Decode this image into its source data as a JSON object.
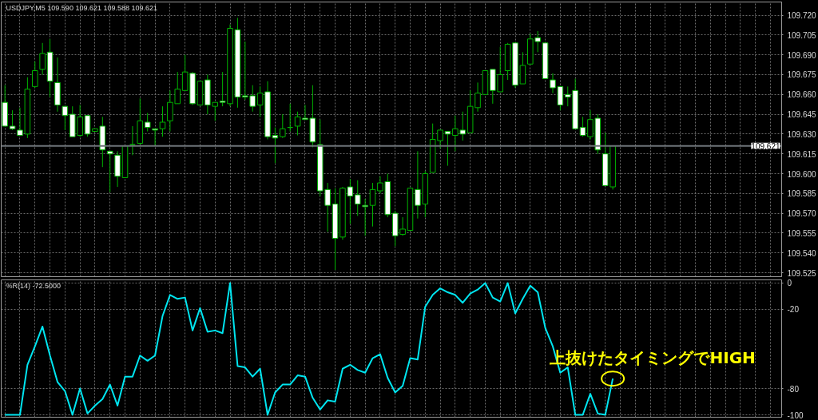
{
  "chart_data": [
    {
      "type": "candlestick",
      "title": "USDJPY,M5  109.590 109.621 109.588 109.621",
      "color": "#00b400",
      "categories": [
        null,
        null,
        null,
        null,
        null,
        null,
        null,
        null,
        null,
        null,
        null,
        null,
        null,
        null,
        null,
        null,
        null,
        null,
        null,
        null,
        null,
        null,
        null,
        null,
        null,
        null,
        null,
        null,
        null,
        null,
        null,
        null,
        null,
        null,
        null,
        null,
        null,
        null,
        null,
        null,
        null,
        null,
        null,
        null,
        null,
        null,
        null,
        null,
        null,
        null,
        null,
        null,
        null,
        null,
        null,
        null,
        null,
        null,
        null,
        null,
        null,
        null,
        null,
        null,
        null,
        null,
        null,
        null,
        null,
        null,
        null,
        null,
        null,
        null,
        null,
        null,
        null,
        null,
        null,
        null,
        null,
        null,
        null,
        null,
        null,
        null,
        null,
        null,
        null,
        null,
        null,
        null,
        null,
        null,
        null,
        null,
        null,
        null,
        null,
        null,
        null,
        null,
        null,
        null
      ],
      "ohlc": [
        [
          109.654,
          109.667,
          109.636,
          109.636
        ],
        [
          109.636,
          109.648,
          109.633,
          109.634
        ],
        [
          109.633,
          109.65,
          109.629,
          109.629
        ],
        [
          109.63,
          109.673,
          109.627,
          109.664
        ],
        [
          109.666,
          109.685,
          109.665,
          109.678
        ],
        [
          109.679,
          109.699,
          109.675,
          109.691
        ],
        [
          109.692,
          109.702,
          109.658,
          109.67
        ],
        [
          109.669,
          109.688,
          109.647,
          109.652
        ],
        [
          109.651,
          109.651,
          109.633,
          109.644
        ],
        [
          109.645,
          109.651,
          109.628,
          109.628
        ],
        [
          109.629,
          109.652,
          109.628,
          109.643
        ],
        [
          109.644,
          109.644,
          109.628,
          109.63
        ],
        [
          109.632,
          109.634,
          109.632,
          109.634
        ],
        [
          109.636,
          109.643,
          109.605,
          109.618
        ],
        [
          109.617,
          109.617,
          109.586,
          109.615
        ],
        [
          109.614,
          109.617,
          109.59,
          109.598
        ],
        [
          109.597,
          109.621,
          109.597,
          109.621
        ],
        [
          109.622,
          109.636,
          109.614,
          109.622
        ],
        [
          109.623,
          109.657,
          109.622,
          109.64
        ],
        [
          109.639,
          109.646,
          109.632,
          109.635
        ],
        [
          109.634,
          109.634,
          109.621,
          109.633
        ],
        [
          109.634,
          109.651,
          109.628,
          109.639
        ],
        [
          109.64,
          109.663,
          109.632,
          109.654
        ],
        [
          109.653,
          109.677,
          109.653,
          109.664
        ],
        [
          109.663,
          109.69,
          109.663,
          109.677
        ],
        [
          109.676,
          109.677,
          109.652,
          109.653
        ],
        [
          109.652,
          109.67,
          109.652,
          109.67
        ],
        [
          109.671,
          109.675,
          109.645,
          109.652
        ],
        [
          109.651,
          109.654,
          109.64,
          109.654
        ],
        [
          109.655,
          109.677,
          109.651,
          109.654
        ],
        [
          109.653,
          109.713,
          109.651,
          109.71
        ],
        [
          109.709,
          109.718,
          109.65,
          109.658
        ],
        [
          109.659,
          109.7,
          109.656,
          109.658
        ],
        [
          109.659,
          109.667,
          109.647,
          109.651
        ],
        [
          109.652,
          109.666,
          109.643,
          109.661
        ],
        [
          109.662,
          109.67,
          109.626,
          109.628
        ],
        [
          109.629,
          109.635,
          109.608,
          109.627
        ],
        [
          109.628,
          109.645,
          109.627,
          109.634
        ],
        [
          109.635,
          109.653,
          109.632,
          109.635
        ],
        [
          109.636,
          109.647,
          109.629,
          109.643
        ],
        [
          109.642,
          109.652,
          109.641,
          109.641
        ],
        [
          109.642,
          109.667,
          109.62,
          109.624
        ],
        [
          109.622,
          109.641,
          109.583,
          109.587
        ],
        [
          109.588,
          109.593,
          109.556,
          109.576
        ],
        [
          109.577,
          109.589,
          109.527,
          109.551
        ],
        [
          109.552,
          109.59,
          109.55,
          109.589
        ],
        [
          109.59,
          109.596,
          109.562,
          109.583
        ],
        [
          109.584,
          109.595,
          109.568,
          109.577
        ],
        [
          109.576,
          109.581,
          109.553,
          109.575
        ],
        [
          109.576,
          109.593,
          109.56,
          109.588
        ],
        [
          109.587,
          109.598,
          109.585,
          109.593
        ],
        [
          109.594,
          109.6,
          109.567,
          109.569
        ],
        [
          109.57,
          109.572,
          109.545,
          109.553
        ],
        [
          109.554,
          109.567,
          109.553,
          109.558
        ],
        [
          109.557,
          109.589,
          109.557,
          109.589
        ],
        [
          109.588,
          109.617,
          109.566,
          109.576
        ],
        [
          109.577,
          109.602,
          109.567,
          109.6
        ],
        [
          109.601,
          109.638,
          109.601,
          109.626
        ],
        [
          109.625,
          109.633,
          109.619,
          109.633
        ],
        [
          109.632,
          109.632,
          109.606,
          109.63
        ],
        [
          109.629,
          109.644,
          109.617,
          109.634
        ],
        [
          109.633,
          109.647,
          109.625,
          109.63
        ],
        [
          109.631,
          109.663,
          109.631,
          109.651
        ],
        [
          109.65,
          109.669,
          109.647,
          109.661
        ],
        [
          109.66,
          109.678,
          109.66,
          109.678
        ],
        [
          109.679,
          109.679,
          109.653,
          109.663
        ],
        [
          109.662,
          109.696,
          109.662,
          109.675
        ],
        [
          109.678,
          109.699,
          109.671,
          109.698
        ],
        [
          109.699,
          109.699,
          109.665,
          109.667
        ],
        [
          109.668,
          109.692,
          109.668,
          109.682
        ],
        [
          109.683,
          109.706,
          109.683,
          109.702
        ],
        [
          109.703,
          109.708,
          109.692,
          109.7
        ],
        [
          109.699,
          109.699,
          109.672,
          109.672
        ],
        [
          109.671,
          109.676,
          109.661,
          109.665
        ],
        [
          109.666,
          109.666,
          109.648,
          109.652
        ],
        [
          109.66,
          109.666,
          109.651,
          109.658
        ],
        [
          109.663,
          109.672,
          109.634,
          109.634
        ],
        [
          109.635,
          109.643,
          109.628,
          109.629
        ],
        [
          109.628,
          109.648,
          109.626,
          109.641
        ],
        [
          109.642,
          109.645,
          109.615,
          109.618
        ],
        [
          109.615,
          109.631,
          109.591,
          109.591
        ],
        [
          109.59,
          109.621,
          109.588,
          109.621
        ],
        null,
        null,
        null,
        null,
        null,
        null,
        null,
        null,
        null,
        null,
        null,
        null,
        null,
        null,
        null,
        null,
        null,
        null,
        null,
        null,
        null,
        null
      ],
      "ylim": [
        109.522,
        109.73
      ],
      "yticks": [
        {
          "value": 109.525,
          "label": "109.525"
        },
        {
          "value": 109.54,
          "label": "109.540"
        },
        {
          "value": 109.555,
          "label": "109.555"
        },
        {
          "value": 109.57,
          "label": "109.570"
        },
        {
          "value": 109.585,
          "label": "109.585"
        },
        {
          "value": 109.6,
          "label": "109.600"
        },
        {
          "value": 109.615,
          "label": "109.615"
        },
        {
          "value": 109.63,
          "label": "109.630"
        },
        {
          "value": 109.645,
          "label": "109.645"
        },
        {
          "value": 109.66,
          "label": "109.660"
        },
        {
          "value": 109.675,
          "label": "109.675"
        },
        {
          "value": 109.69,
          "label": "109.690"
        },
        {
          "value": 109.705,
          "label": "109.705"
        },
        {
          "value": 109.72,
          "label": "109.720"
        }
      ],
      "ref_lines": [
        {
          "axis": "y",
          "value": 109.621,
          "label": "109.621",
          "color": "#6e7378"
        }
      ],
      "grid": true,
      "tick_labels": "y"
    },
    {
      "type": "line",
      "title": "%R(14) -72.5000",
      "categories": [
        null,
        null,
        null,
        null,
        null,
        null,
        null,
        null,
        null,
        null,
        null,
        null,
        null,
        null,
        null,
        null,
        null,
        null,
        null,
        null,
        null,
        null,
        null,
        null,
        null,
        null,
        null,
        null,
        null,
        null,
        null,
        null,
        null,
        null,
        null,
        null,
        null,
        null,
        null,
        null,
        null,
        null,
        null,
        null,
        null,
        null,
        null,
        null,
        null,
        null,
        null,
        null,
        null,
        null,
        null,
        null,
        null,
        null,
        null,
        null,
        null,
        null,
        null,
        null,
        null,
        null,
        null,
        null,
        null,
        null,
        null,
        null,
        null,
        null,
        null,
        null,
        null,
        null,
        null,
        null,
        null,
        null,
        null,
        null,
        null,
        null,
        null,
        null,
        null,
        null,
        null,
        null,
        null,
        null,
        null,
        null,
        null,
        null,
        null,
        null,
        null,
        null,
        null,
        null
      ],
      "series": [
        {
          "color": "#00e5f0",
          "values": [
            -100,
            -100,
            -100,
            -62,
            -48,
            -33,
            -55,
            -75,
            -82,
            -100,
            -80,
            -99,
            -93,
            -88,
            -77,
            -93,
            -71,
            -71,
            -55,
            -59,
            -55,
            -25,
            -9,
            -12,
            -11,
            -36,
            -19,
            -37,
            -36,
            -38,
            0,
            -63,
            -64,
            -71,
            -65,
            -100,
            -83,
            -77,
            -77,
            -70,
            -71,
            -87,
            -96,
            -89,
            -90,
            -65,
            -62,
            -66,
            -68,
            -57,
            -54,
            -72,
            -83,
            -78,
            -57,
            -58,
            -18,
            -9,
            -4,
            -7,
            -9,
            -15,
            -8,
            -5,
            0,
            -11,
            -14,
            0,
            -23,
            -12,
            -2,
            -7,
            -34,
            -48,
            -68,
            -64,
            -100,
            -100,
            -84,
            -99,
            -100,
            -72.5,
            null,
            null,
            null,
            null,
            null,
            null,
            null,
            null,
            null,
            null,
            null,
            null,
            null,
            null,
            null,
            null,
            null,
            null,
            null,
            null,
            null,
            null
          ]
        }
      ],
      "ylim": [
        -101.8,
        2.4
      ],
      "yticks": [
        0,
        -20,
        -80,
        -100
      ],
      "annotations": [
        "上抜けたタイミングでHIGH"
      ],
      "grid": true,
      "tick_labels": "y",
      "marker": "none",
      "line_style": "solid"
    }
  ]
}
